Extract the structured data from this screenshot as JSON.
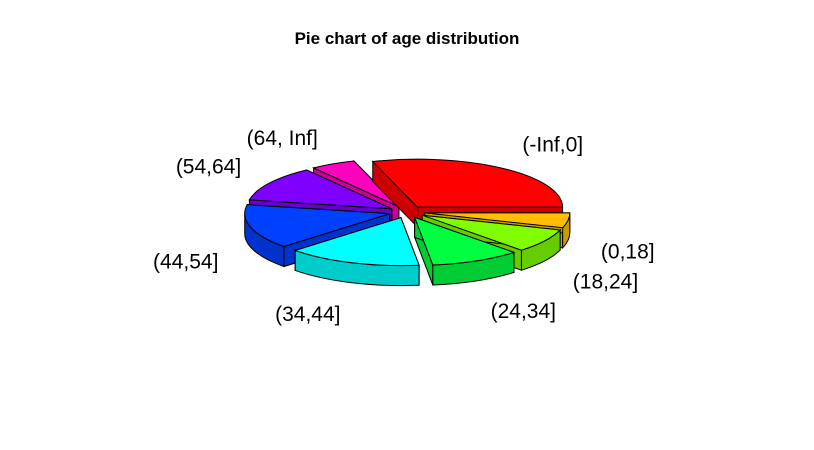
{
  "chart_data": {
    "type": "pie",
    "style": "3d-exploded",
    "title": "Pie chart of age distribution",
    "categories": [
      "(-Inf,0]",
      "(64, Inf]",
      "(54,64]",
      "(44,54]",
      "(34,44]",
      "(24,34]",
      "(18,24]",
      "(0,18]"
    ],
    "values": [
      30,
      5,
      12,
      15,
      15,
      10,
      8,
      5
    ],
    "colors": [
      "#FF0000",
      "#FF00BF",
      "#8000FF",
      "#0040FF",
      "#00FFFF",
      "#00FF40",
      "#80FF00",
      "#FFBF00"
    ]
  }
}
